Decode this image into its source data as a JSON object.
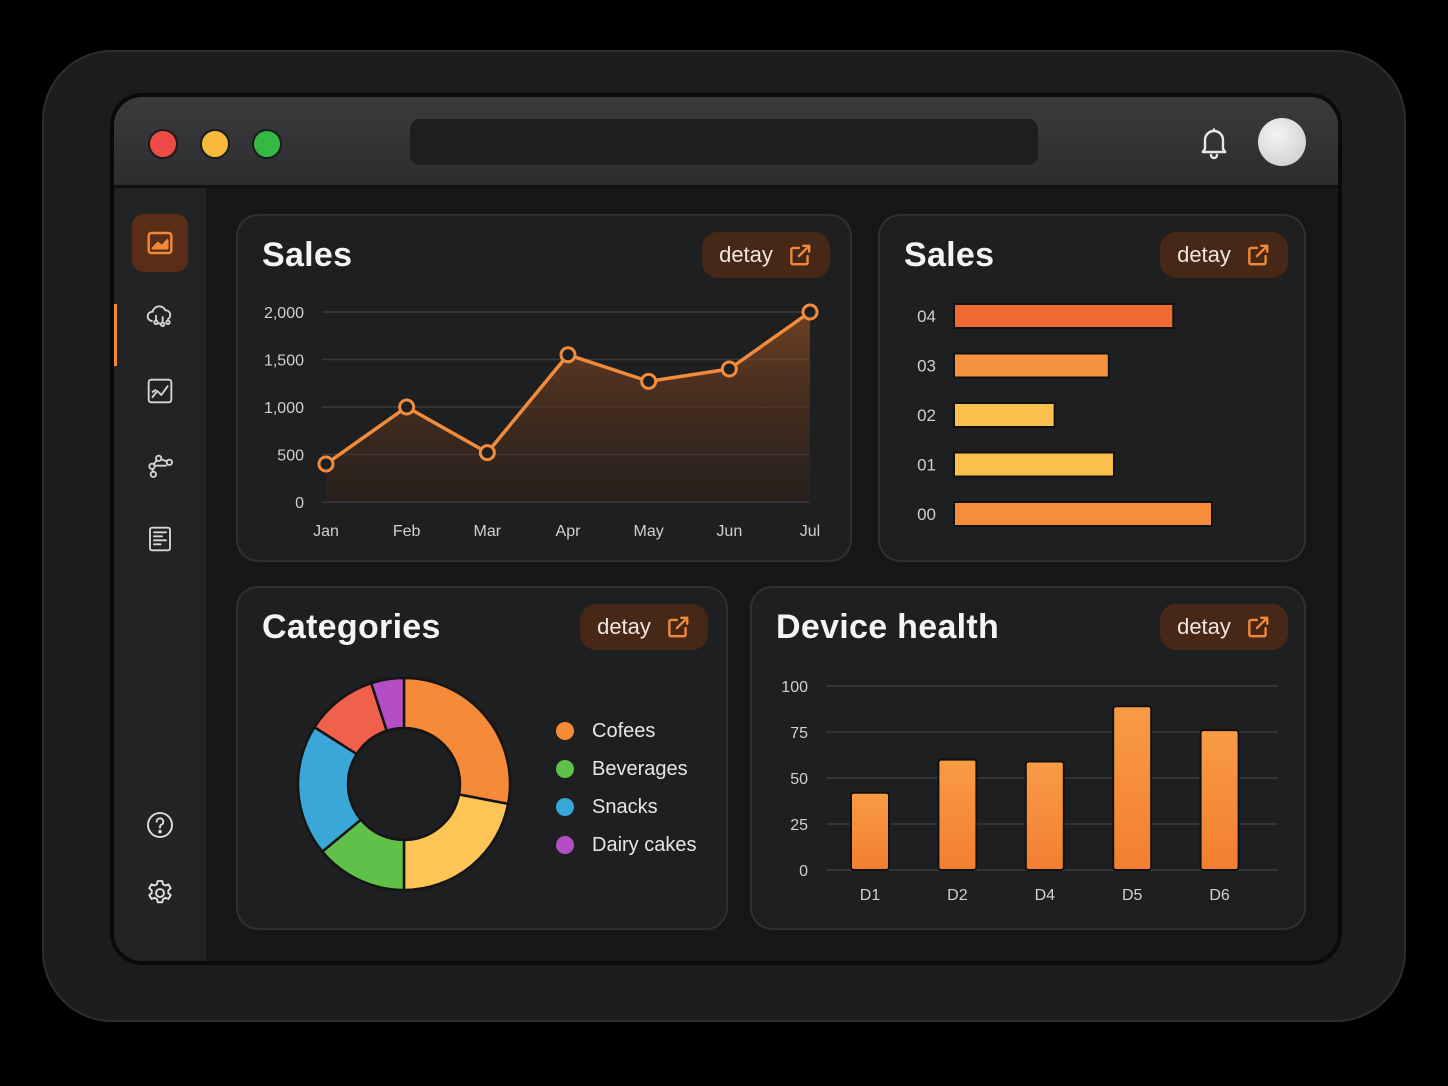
{
  "window": {
    "controls": [
      "close",
      "minimize",
      "maximize"
    ],
    "topbar_icons": [
      "bell-icon",
      "avatar"
    ]
  },
  "sidebar": {
    "items": [
      {
        "name": "dashboard",
        "icon": "chart-image-icon",
        "active": true
      },
      {
        "name": "cloud",
        "icon": "cloud-link-icon",
        "active": false
      },
      {
        "name": "analytics",
        "icon": "line-chart-icon",
        "active": false
      },
      {
        "name": "network",
        "icon": "nodes-icon",
        "active": false
      },
      {
        "name": "reports",
        "icon": "document-icon",
        "active": false
      }
    ],
    "bottom_items": [
      {
        "name": "help",
        "icon": "help-icon"
      },
      {
        "name": "settings",
        "icon": "gear-icon"
      }
    ]
  },
  "accent_color": "#f08a3a",
  "cards": {
    "sales_line": {
      "title": "Sales",
      "detail_label": "detay"
    },
    "sales_bars": {
      "title": "Sales",
      "detail_label": "detay"
    },
    "categories": {
      "title": "Categories",
      "detail_label": "detay"
    },
    "device_health": {
      "title": "Device health",
      "detail_label": "detay"
    }
  },
  "chart_data": [
    {
      "type": "line",
      "title": "Sales",
      "categories": [
        "Jan",
        "Feb",
        "Mar",
        "Apr",
        "May",
        "Jun",
        "Jul"
      ],
      "values": [
        400,
        1000,
        520,
        1550,
        1270,
        1400,
        2000
      ],
      "ylim": [
        0,
        2000
      ],
      "yticks": [
        0,
        500,
        1000,
        1500,
        2000
      ],
      "ytick_labels": [
        "0",
        "500",
        "1,000",
        "1,500",
        "2,000"
      ],
      "grid": true,
      "area_fill": true
    },
    {
      "type": "bar",
      "orientation": "horizontal",
      "title": "Sales",
      "categories": [
        "04",
        "03",
        "02",
        "01",
        "00"
      ],
      "values": [
        85,
        60,
        39,
        62,
        100
      ],
      "colors": [
        "#f26a33",
        "#f4923d",
        "#fcc04f",
        "#fcc04f",
        "#f58e3c"
      ]
    },
    {
      "type": "pie",
      "title": "Categories",
      "donut": true,
      "legend": [
        "Cofees",
        "Beverages",
        "Snacks",
        "Dairy cakes"
      ],
      "legend_colors": [
        "#f58a39",
        "#5fc04a",
        "#36a7d8",
        "#b44ec4"
      ],
      "slices": [
        {
          "color": "#f58a39",
          "value": 28
        },
        {
          "color": "#fec456",
          "value": 22
        },
        {
          "color": "#5fc04a",
          "value": 14
        },
        {
          "color": "#3aa7d6",
          "value": 20
        },
        {
          "color": "#f0604a",
          "value": 11
        },
        {
          "color": "#b44ec4",
          "value": 5
        }
      ]
    },
    {
      "type": "bar",
      "title": "Device health",
      "categories": [
        "D1",
        "D2",
        "D4",
        "D5",
        "D6"
      ],
      "values": [
        42,
        60,
        59,
        89,
        76
      ],
      "ylim": [
        0,
        100
      ],
      "yticks": [
        0,
        25,
        50,
        75,
        100
      ],
      "grid": true
    }
  ]
}
